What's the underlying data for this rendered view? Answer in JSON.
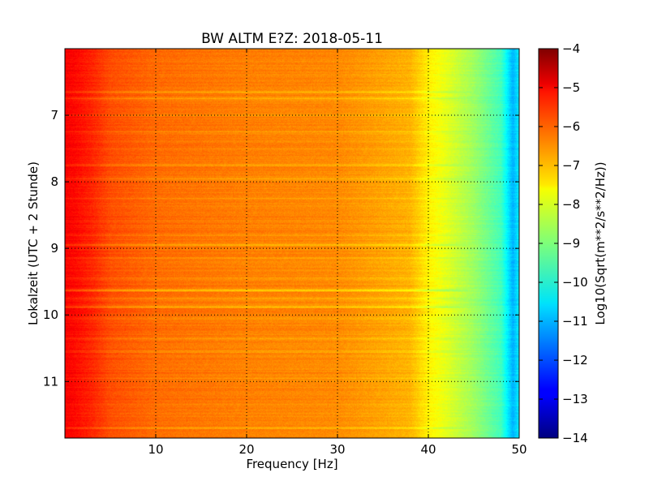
{
  "chart_data": {
    "type": "heatmap",
    "title": "BW ALTM E?Z: 2018-05-11",
    "xlabel": "Frequency [Hz]",
    "ylabel": "Lokalzeit (UTC + 2 Stunde)",
    "xlim": [
      0,
      50
    ],
    "ylim": [
      11.85,
      6.0
    ],
    "y_inverted": true,
    "x_ticks": [
      10,
      20,
      30,
      40,
      50
    ],
    "x_tick_labels": [
      "10",
      "20",
      "30",
      "40",
      "50"
    ],
    "y_ticks": [
      7,
      8,
      9,
      10,
      11
    ],
    "y_tick_labels": [
      "7",
      "8",
      "9",
      "10",
      "11"
    ],
    "grid": true,
    "colormap": "jet",
    "colorbar": {
      "label": "Log10(Sqrt(m**2/s**2/Hz))",
      "range": [
        -14,
        -4
      ],
      "ticks": [
        -4,
        -5,
        -6,
        -7,
        -8,
        -9,
        -10,
        -11,
        -12,
        -13,
        -14
      ],
      "tick_labels": [
        "−4",
        "−5",
        "−6",
        "−7",
        "−8",
        "−9",
        "−10",
        "−11",
        "−12",
        "−13",
        "−14"
      ]
    },
    "frequency_profile": {
      "freq_hz": [
        0,
        1,
        3,
        5,
        10,
        20,
        30,
        38,
        40,
        42,
        45,
        48,
        49.3,
        50
      ],
      "log10_amplitude": [
        -5.2,
        -5.3,
        -5.6,
        -6.0,
        -6.3,
        -6.5,
        -6.6,
        -7.0,
        -7.6,
        -8.0,
        -8.7,
        -9.6,
        -11.0,
        -10.4
      ]
    },
    "horizontal_bands": [
      {
        "time": 6.65,
        "delta": -0.5
      },
      {
        "time": 6.75,
        "delta": -0.4
      },
      {
        "time": 7.0,
        "delta": -0.3
      },
      {
        "time": 7.25,
        "delta": -0.25
      },
      {
        "time": 7.75,
        "delta": -0.35
      },
      {
        "time": 7.95,
        "delta": -0.3
      },
      {
        "time": 8.25,
        "delta": -0.25
      },
      {
        "time": 8.8,
        "delta": -0.3
      },
      {
        "time": 8.95,
        "delta": -0.7
      },
      {
        "time": 9.15,
        "delta": -0.35
      },
      {
        "time": 9.45,
        "delta": -0.3
      },
      {
        "time": 9.63,
        "delta": -1.0
      },
      {
        "time": 9.75,
        "delta": -0.4
      },
      {
        "time": 9.88,
        "delta": -0.8
      },
      {
        "time": 10.05,
        "delta": -0.35
      },
      {
        "time": 10.35,
        "delta": -0.35
      },
      {
        "time": 10.55,
        "delta": -0.4
      },
      {
        "time": 10.95,
        "delta": -0.3
      },
      {
        "time": 11.35,
        "delta": -0.3
      },
      {
        "time": 11.7,
        "delta": -0.6
      }
    ]
  }
}
